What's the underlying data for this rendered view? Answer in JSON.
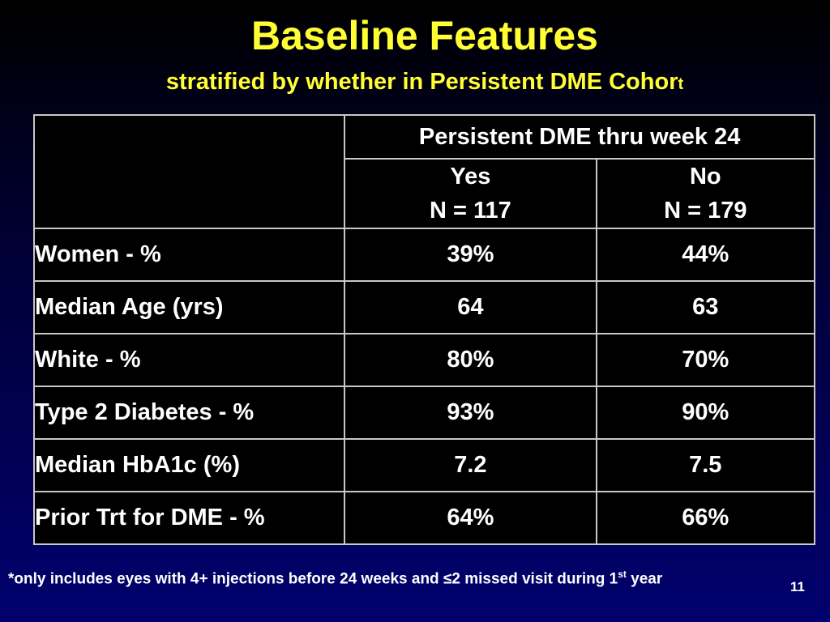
{
  "slide": {
    "title": "Baseline Features",
    "subtitle_main": "stratified by whether in Persistent DME Cohor",
    "subtitle_tail": "t",
    "page_number": "11"
  },
  "table": {
    "group_header": "Persistent DME thru week 24",
    "columns": [
      {
        "label": "Yes",
        "n": "N = 117"
      },
      {
        "label": "No",
        "n": "N = 179"
      }
    ],
    "rows": [
      {
        "label": "Women - %",
        "yes": "39%",
        "no": "44%"
      },
      {
        "label": "Median Age (yrs)",
        "yes": "64",
        "no": "63"
      },
      {
        "label": "White - %",
        "yes": "80%",
        "no": "70%"
      },
      {
        "label": "Type 2 Diabetes - %",
        "yes": "93%",
        "no": "90%"
      },
      {
        "label": "Median HbA1c (%)",
        "yes": "7.2",
        "no": "7.5"
      },
      {
        "label": "Prior Trt for DME - %",
        "yes": "64%",
        "no": "66%"
      }
    ]
  },
  "footnote": {
    "text_before": "*only includes eyes with 4+ injections before 24 weeks and ≤2 missed visit during 1",
    "superscript": "st",
    "text_after": " year"
  },
  "colors": {
    "title": "#ffff33",
    "table_background": "#000000",
    "table_border": "#c8c8c8"
  }
}
